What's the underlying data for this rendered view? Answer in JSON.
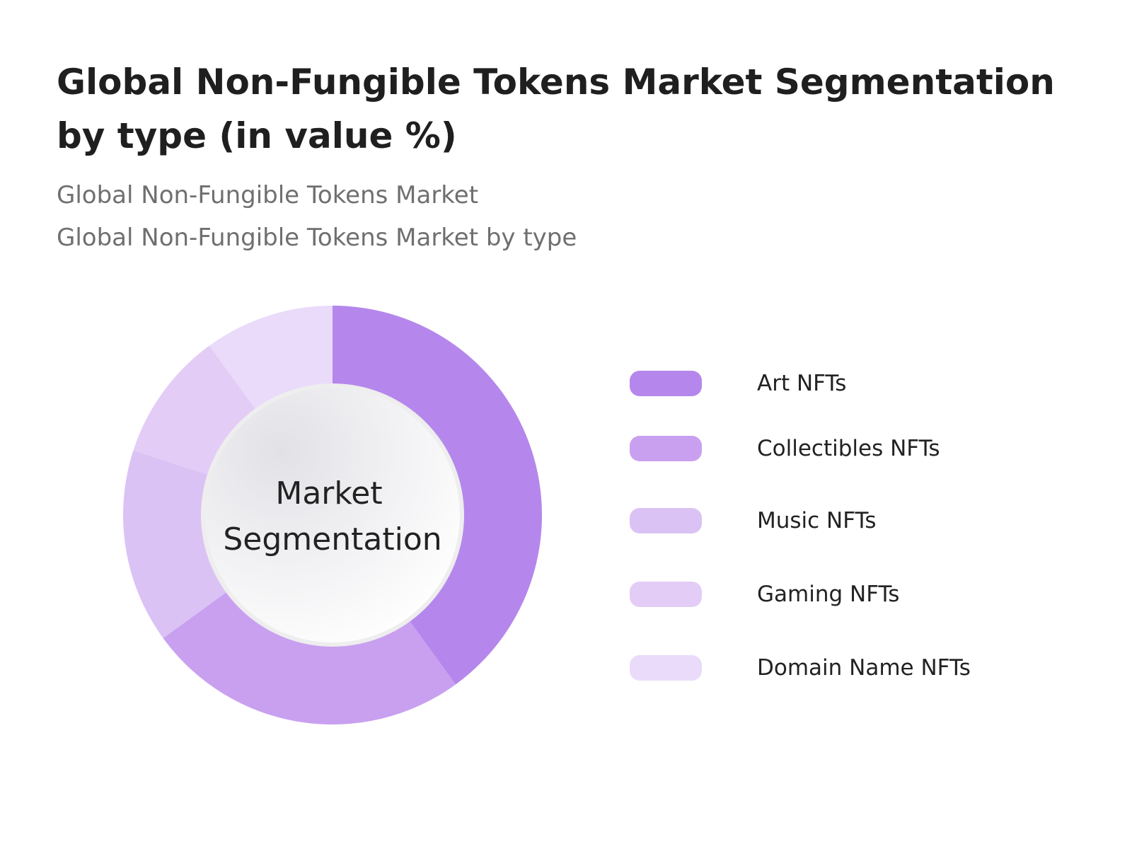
{
  "page": {
    "title": "Global Non-Fungible Tokens Market Segmentation by type (in value %)",
    "subtitle_1": "Global Non-Fungible Tokens Market",
    "subtitle_2": "Global Non-Fungible Tokens Market by type"
  },
  "chart_data": {
    "type": "pie",
    "donut": true,
    "center_label_line1": "Market",
    "center_label_line2": "Segmentation",
    "legend_position": "right",
    "categories": [
      "Art NFTs",
      "Collectibles NFTs",
      "Music NFTs",
      "Gaming NFTs",
      "Domain Name NFTs"
    ],
    "values": [
      40,
      25,
      15,
      10,
      10
    ],
    "colors": [
      "#b587ec",
      "#c9a0f0",
      "#dbc2f5",
      "#e3cdf7",
      "#eadbfa"
    ]
  }
}
